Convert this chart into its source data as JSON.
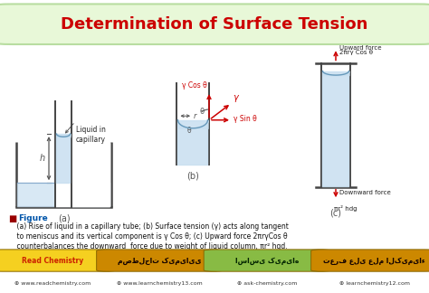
{
  "title": "Determination of Surface Tension",
  "title_color": "#cc0000",
  "title_fontsize": 13,
  "header_bg": "#e8f8d8",
  "header_border": "#b8dda0",
  "main_bg": "#ffffff",
  "figure_text_line1": "■ Figure",
  "figure_text_line2": "    (a) Rise of liquid in a capillary tube; (b) Surface tension (γ) acts along tangent",
  "figure_text_line3": "    to meniscus and its vertical component is γ Cos θ; (c) Upward force 2πrγCos θ",
  "figure_text_line4": "    counterbalances the downward  force due to weight of liquid column, πr² hgd.",
  "footer_sites": [
    "www.readchemistry.com",
    "www.learnchemistry13.com",
    "ask-chemistry.com",
    "learnchemistry12.com"
  ],
  "footer_labels": [
    "Read Chemistry",
    "مصطلحات کیمیایی",
    "اساسی کیمیاه",
    "تعرف علی علم الکیمیاء"
  ],
  "footer_bg_colors": [
    "#f5d020",
    "#cc8800",
    "#88bb44",
    "#cc8800"
  ],
  "footer_text_colors": [
    "#cc2200",
    "#110000",
    "#002200",
    "#110000"
  ],
  "liquid_color": "#c8dff0",
  "tube_color": "#444444",
  "arrow_color": "#cc0000",
  "label_color": "#222222",
  "dim_color": "#555555"
}
